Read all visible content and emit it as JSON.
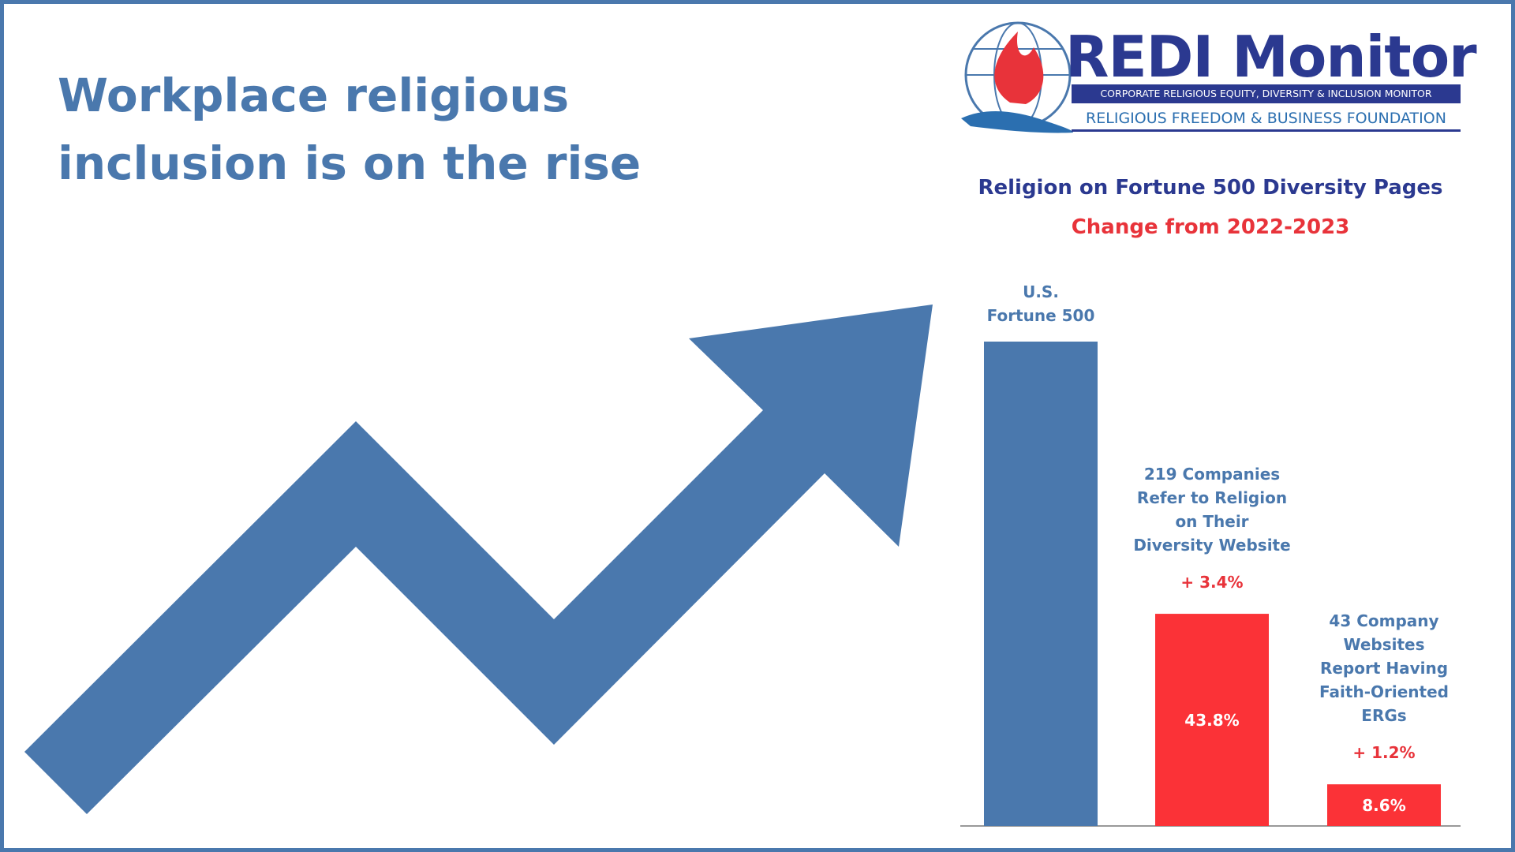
{
  "headline": "Workplace religious inclusion is on the rise",
  "logo": {
    "name": "REDI Monitor",
    "tagline": "CORPORATE RELIGIOUS EQUITY, DIVERSITY & INCLUSION MONITOR",
    "organization": "RELIGIOUS FREEDOM & BUSINESS FOUNDATION"
  },
  "chart_data": {
    "type": "bar",
    "title": "Religion on Fortune 500 Diversity Pages",
    "subtitle": "Change from 2022-2023",
    "categories": [
      "U.S.\nFortune 500",
      "219 Companies\nRefer to Religion\non Their\nDiversity Website",
      "43 Company\nWebsites\nReport Having\nFaith-Oriented\nERGs"
    ],
    "values": [
      100,
      43.8,
      8.6
    ],
    "value_labels": [
      null,
      "43.8%",
      "8.6%"
    ],
    "changes": [
      null,
      "+ 3.4%",
      "+ 1.2%"
    ],
    "colors": [
      "#4a78ad",
      "#fb3237",
      "#fb3237"
    ],
    "ylim": [
      0,
      100
    ]
  }
}
